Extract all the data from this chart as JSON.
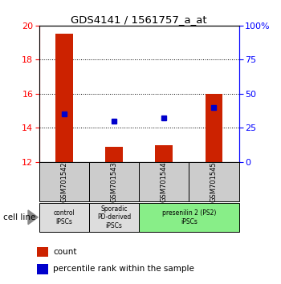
{
  "title": "GDS4141 / 1561757_a_at",
  "samples": [
    "GSM701542",
    "GSM701543",
    "GSM701544",
    "GSM701545"
  ],
  "bar_tops": [
    19.5,
    12.9,
    13.0,
    16.0
  ],
  "bar_bottoms": [
    12.0,
    12.0,
    12.0,
    12.0
  ],
  "blue_values": [
    14.8,
    14.38,
    14.6,
    15.2
  ],
  "ylim_left": [
    12,
    20
  ],
  "ylim_right": [
    0,
    100
  ],
  "yticks_left": [
    12,
    14,
    16,
    18,
    20
  ],
  "yticks_right": [
    0,
    25,
    50,
    75,
    100
  ],
  "ytick_labels_right": [
    "0",
    "25",
    "50",
    "75",
    "100%"
  ],
  "bar_color": "#cc2200",
  "blue_color": "#0000cc",
  "grid_values": [
    14,
    16,
    18
  ],
  "categories": [
    {
      "label": "control\nIPSCs",
      "start": 0,
      "end": 1,
      "color": "#dddddd"
    },
    {
      "label": "Sporadic\nPD-derived\niPSCs",
      "start": 1,
      "end": 2,
      "color": "#dddddd"
    },
    {
      "label": "presenilin 2 (PS2)\niPSCs",
      "start": 2,
      "end": 4,
      "color": "#88ee88"
    }
  ],
  "bar_width": 0.35,
  "sample_box_color": "#cccccc",
  "legend_count_label": "count",
  "legend_pct_label": "percentile rank within the sample",
  "cell_line_label": "cell line"
}
